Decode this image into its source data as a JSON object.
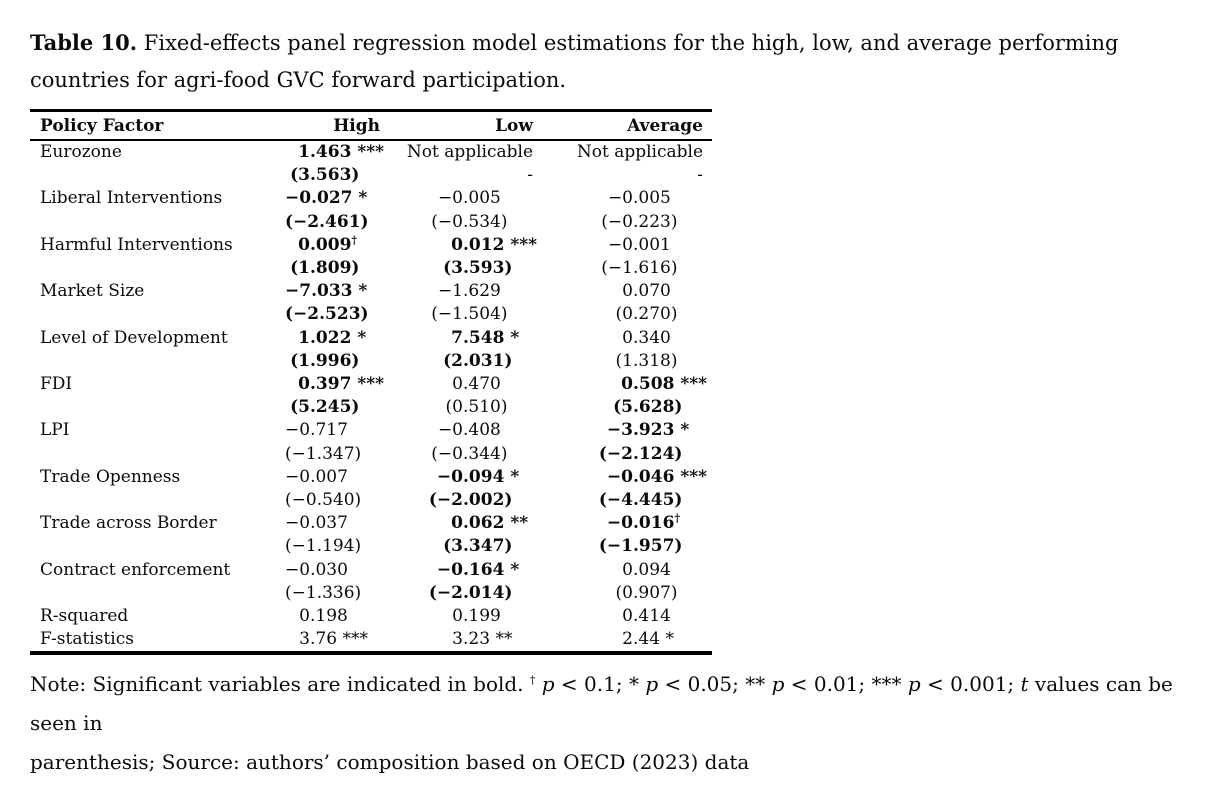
{
  "caption": {
    "label": "Table 10.",
    "lines": [
      "Fixed-effects panel regression model estimations for the high, low, and average performing",
      "countries for agri-food GVC forward participation."
    ]
  },
  "table": {
    "columns": [
      "Policy Factor",
      "High",
      "Low",
      "Average"
    ],
    "rows": [
      {
        "factor": "Eurozone",
        "coef": [
          {
            "t": "1.463 ***",
            "b": true
          },
          {
            "t": "Not applicable"
          },
          {
            "t": "Not applicable"
          }
        ],
        "tval": [
          {
            "t": "(3.563)",
            "b": true
          },
          {
            "t": "-"
          },
          {
            "t": "-"
          }
        ]
      },
      {
        "factor": "Liberal Interventions",
        "coef": [
          {
            "t": "−0.027 *",
            "b": true
          },
          {
            "t": "−0.005"
          },
          {
            "t": "−0.005"
          }
        ],
        "tval": [
          {
            "t": "(−2.461)",
            "b": true
          },
          {
            "t": "(−0.534)"
          },
          {
            "t": "(−0.223)"
          }
        ]
      },
      {
        "factor": "Harmful Interventions",
        "coef": [
          {
            "t": "0.009",
            "b": true,
            "sup": "†"
          },
          {
            "t": "0.012 ***",
            "b": true
          },
          {
            "t": "−0.001"
          }
        ],
        "tval": [
          {
            "t": "(1.809)",
            "b": true
          },
          {
            "t": "(3.593)",
            "b": true
          },
          {
            "t": "(−1.616)"
          }
        ]
      },
      {
        "factor": "Market Size",
        "coef": [
          {
            "t": "−7.033 *",
            "b": true
          },
          {
            "t": "−1.629"
          },
          {
            "t": "0.070"
          }
        ],
        "tval": [
          {
            "t": "(−2.523)",
            "b": true
          },
          {
            "t": "(−1.504)"
          },
          {
            "t": "(0.270)"
          }
        ]
      },
      {
        "factor": "Level of Development",
        "coef": [
          {
            "t": "1.022 *",
            "b": true
          },
          {
            "t": "7.548 *",
            "b": true
          },
          {
            "t": "0.340"
          }
        ],
        "tval": [
          {
            "t": "(1.996)",
            "b": true
          },
          {
            "t": "(2.031)",
            "b": true
          },
          {
            "t": "(1.318)"
          }
        ]
      },
      {
        "factor": "FDI",
        "coef": [
          {
            "t": "0.397 ***",
            "b": true
          },
          {
            "t": "0.470"
          },
          {
            "t": "0.508 ***",
            "b": true
          }
        ],
        "tval": [
          {
            "t": "(5.245)",
            "b": true
          },
          {
            "t": "(0.510)"
          },
          {
            "t": "(5.628)",
            "b": true
          }
        ]
      },
      {
        "factor": "LPI",
        "coef": [
          {
            "t": "−0.717"
          },
          {
            "t": "−0.408"
          },
          {
            "t": "−3.923 *",
            "b": true
          }
        ],
        "tval": [
          {
            "t": "(−1.347)"
          },
          {
            "t": "(−0.344)"
          },
          {
            "t": "(−2.124)",
            "b": true
          }
        ]
      },
      {
        "factor": "Trade Openness",
        "coef": [
          {
            "t": "−0.007"
          },
          {
            "t": "−0.094 *",
            "b": true
          },
          {
            "t": "−0.046 ***",
            "b": true
          }
        ],
        "tval": [
          {
            "t": "(−0.540)"
          },
          {
            "t": "(−2.002)",
            "b": true
          },
          {
            "t": "(−4.445)",
            "b": true
          }
        ]
      },
      {
        "factor": "Trade across Border",
        "coef": [
          {
            "t": "−0.037"
          },
          {
            "t": "0.062 **",
            "b": true
          },
          {
            "t": "−0.016",
            "b": true,
            "sup": "†"
          }
        ],
        "tval": [
          {
            "t": "(−1.194)"
          },
          {
            "t": "(3.347)",
            "b": true
          },
          {
            "t": "(−1.957)",
            "b": true
          }
        ]
      },
      {
        "factor": "Contract enforcement",
        "coef": [
          {
            "t": "−0.030"
          },
          {
            "t": "−0.164 *",
            "b": true
          },
          {
            "t": "0.094"
          }
        ],
        "tval": [
          {
            "t": "(−1.336)"
          },
          {
            "t": "(−2.014)",
            "b": true
          },
          {
            "t": "(0.907)"
          }
        ]
      },
      {
        "factor": "R-squared",
        "coef": [
          {
            "t": "0.198"
          },
          {
            "t": "0.199"
          },
          {
            "t": "0.414"
          }
        ]
      },
      {
        "factor": "F-statistics",
        "coef": [
          {
            "t": "3.76 ***"
          },
          {
            "t": "3.23 **"
          },
          {
            "t": "2.44 *"
          }
        ]
      }
    ]
  },
  "note": {
    "lines": [
      [
        {
          "t": "Note: Significant variables are indicated in bold. "
        },
        {
          "t": "†",
          "s": true
        },
        {
          "t": " "
        },
        {
          "t": "p",
          "i": true
        },
        {
          "t": " < 0.1; * "
        },
        {
          "t": "p",
          "i": true
        },
        {
          "t": " < 0.05; ** "
        },
        {
          "t": "p",
          "i": true
        },
        {
          "t": " < 0.01; *** "
        },
        {
          "t": "p",
          "i": true
        },
        {
          "t": " < 0.001; "
        },
        {
          "t": "t",
          "i": true
        },
        {
          "t": " values can be seen in"
        }
      ],
      [
        {
          "t": "parenthesis; Source: authors’ composition based on OECD (2023) data"
        }
      ]
    ]
  }
}
